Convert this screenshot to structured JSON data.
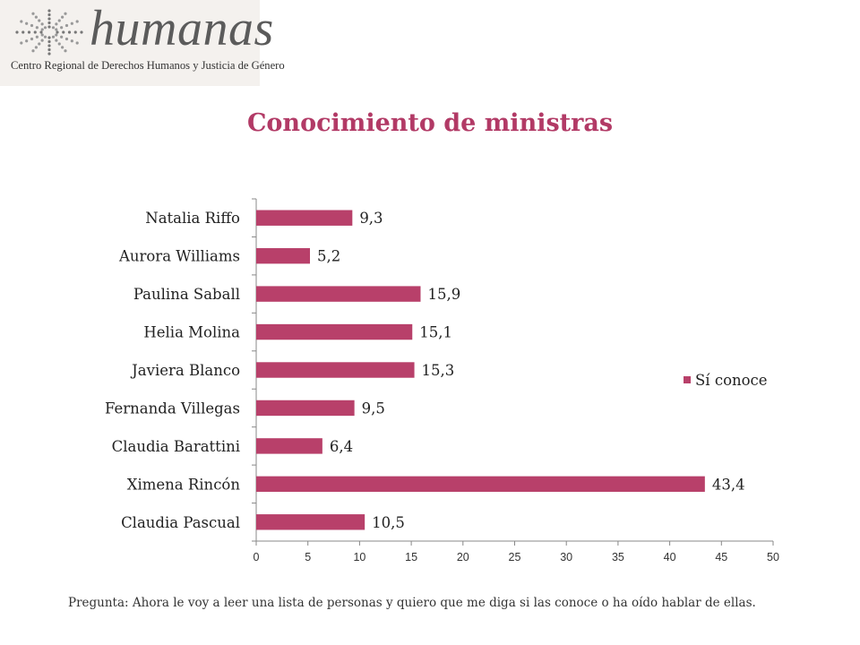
{
  "logo": {
    "wordmark": "humanas",
    "subtitle": "Centro Regional de Derechos Humanos y Justicia de Género"
  },
  "colors": {
    "bar": "#b8406a",
    "title": "#b23a66",
    "axis": "#888888"
  },
  "chart_data": {
    "type": "bar",
    "orientation": "horizontal",
    "title": "Conocimiento de ministras",
    "categories": [
      "Natalia Riffo",
      "Aurora Williams",
      "Paulina Saball",
      "Helia Molina",
      "Javiera Blanco",
      "Fernanda Villegas",
      "Claudia Barattini",
      "Ximena Rincón",
      "Claudia Pascual"
    ],
    "series": [
      {
        "name": "Sí conoce",
        "values": [
          9.3,
          5.2,
          15.9,
          15.1,
          15.3,
          9.5,
          6.4,
          43.4,
          10.5
        ]
      }
    ],
    "data_labels": [
      "9,3",
      "5,2",
      "15,9",
      "15,1",
      "15,3",
      "9,5",
      "6,4",
      "43,4",
      "10,5"
    ],
    "xlim": [
      0,
      50
    ],
    "xticks": [
      0,
      5,
      10,
      15,
      20,
      25,
      30,
      35,
      40,
      45,
      50
    ],
    "grid": false,
    "legend_position": "right"
  },
  "footnote": "Pregunta: Ahora le voy a leer una lista de personas y quiero que me diga si las conoce o ha oído hablar de ellas."
}
